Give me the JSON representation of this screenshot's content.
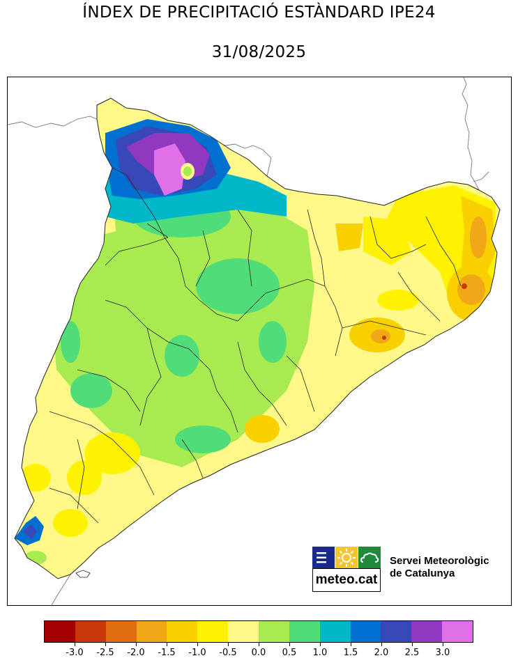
{
  "title": "ÍNDEX DE PRECIPITACIÓ ESTÀNDARD IPE24",
  "date": "31/08/2025",
  "legend": {
    "colors": [
      "#a50000",
      "#c83808",
      "#e06e10",
      "#f0a818",
      "#f8d000",
      "#fff200",
      "#fff98a",
      "#a8eb50",
      "#50dc78",
      "#00b8c8",
      "#0070d0",
      "#3848b8",
      "#9038c0",
      "#e070e8"
    ],
    "ticks": [
      "-3.0",
      "-2.5",
      "-2.0",
      "-1.5",
      "-1.0",
      "-0.5",
      "0.0",
      "0.5",
      "1.0",
      "1.5",
      "2.0",
      "2.5",
      "3.0"
    ]
  },
  "logo": {
    "text": "meteo.cat",
    "org_line1": "Servei Meteorològic",
    "org_line2": "de Catalunya",
    "box_colors": [
      "#1a2a8a",
      "#f2c531",
      "#1f8a3c"
    ]
  }
}
